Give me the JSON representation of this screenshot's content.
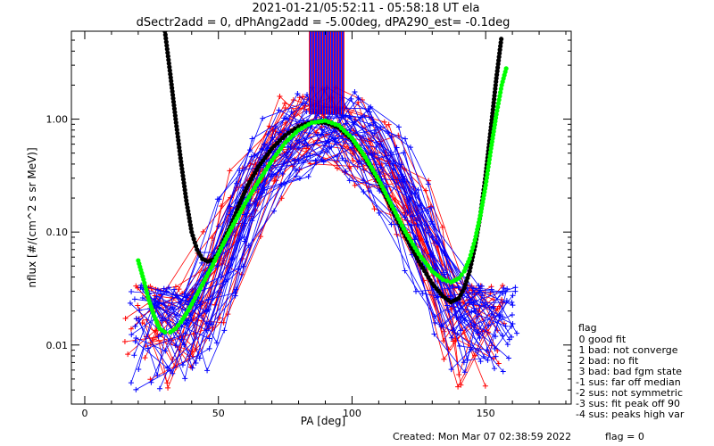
{
  "chart_data": {
    "type": "line",
    "title": "2021-01-21/05:52:11 - 05:58:18 UT ela",
    "subtitle": "dSectr2add = 0, dPhAng2add = -5.00deg, dPA290_est=  -0.1deg",
    "xlabel": "PA [deg]",
    "ylabel": "nflux [#/(cm^2 s sr MeV)]",
    "xlim": [
      -5,
      182
    ],
    "ylim": [
      0.003,
      6
    ],
    "yscale": "log",
    "xticks": [
      0,
      50,
      100,
      150
    ],
    "xtick_labels": [
      "0",
      "50",
      "100",
      "150"
    ],
    "yticks": [
      0.01,
      0.1,
      1.0
    ],
    "ytick_labels": [
      "0.01",
      "0.10",
      "1.00"
    ],
    "grid": false,
    "legend_position": "right-bottom",
    "colors": {
      "red_series": "#ff0000",
      "blue_series": "#0000ff",
      "black_fit": "#000000",
      "green_fit": "#00ff00"
    },
    "series": [
      {
        "color": "#000000",
        "style": "thick-dots",
        "x": [
          30,
          32,
          34,
          36,
          38,
          40,
          42,
          44,
          46,
          48,
          50,
          52,
          55,
          58,
          61,
          65,
          70,
          75,
          80,
          85,
          90,
          95,
          100,
          105,
          110,
          115,
          120,
          125,
          130,
          134,
          137,
          140,
          142,
          144,
          146,
          148,
          150,
          152,
          154,
          156
        ],
        "y": [
          6.0,
          2.5,
          1.0,
          0.42,
          0.19,
          0.1,
          0.07,
          0.058,
          0.055,
          0.057,
          0.065,
          0.085,
          0.12,
          0.18,
          0.26,
          0.38,
          0.55,
          0.72,
          0.86,
          0.94,
          0.93,
          0.84,
          0.66,
          0.45,
          0.28,
          0.16,
          0.092,
          0.055,
          0.035,
          0.027,
          0.024,
          0.026,
          0.032,
          0.045,
          0.075,
          0.14,
          0.32,
          0.85,
          2.3,
          5.5
        ]
      },
      {
        "color": "#00ff00",
        "style": "thick-dots",
        "x": [
          20,
          22,
          24,
          26,
          28,
          30,
          32,
          34,
          36,
          38,
          40,
          42,
          45,
          48,
          51,
          55,
          60,
          65,
          70,
          75,
          80,
          85,
          90,
          95,
          100,
          105,
          110,
          115,
          120,
          125,
          130,
          134,
          137,
          140,
          142,
          144,
          146,
          148,
          150,
          152,
          154,
          156,
          158
        ],
        "y": [
          0.056,
          0.038,
          0.025,
          0.018,
          0.014,
          0.013,
          0.013,
          0.014,
          0.016,
          0.019,
          0.023,
          0.028,
          0.038,
          0.052,
          0.072,
          0.11,
          0.18,
          0.28,
          0.43,
          0.62,
          0.8,
          0.93,
          0.97,
          0.88,
          0.68,
          0.46,
          0.29,
          0.17,
          0.1,
          0.064,
          0.045,
          0.038,
          0.036,
          0.039,
          0.045,
          0.058,
          0.085,
          0.14,
          0.26,
          0.55,
          1.1,
          2.0,
          3.0
        ]
      }
    ],
    "ray_band": {
      "x_from": 84,
      "x_to": 97,
      "y_from": 1.1
    },
    "scatter_profile": {
      "red_x_range": [
        15,
        158
      ],
      "blue_x_range": [
        17,
        162
      ],
      "peak_x": 90,
      "peak_y": 0.9
    }
  },
  "legend": {
    "title": "flag",
    "items": [
      " 0 good fit",
      " 1 bad: not converge",
      " 2 bad: no fit",
      " 3 bad: bad fgm state",
      "-1 sus: far off median",
      "-2 sus: not symmetric",
      "-3 sus: fit peak off 90",
      "-4 sus: peaks high var"
    ]
  },
  "footer": {
    "created": "Created: Mon Mar 07 02:38:59 2022",
    "flag": "flag = 0"
  }
}
